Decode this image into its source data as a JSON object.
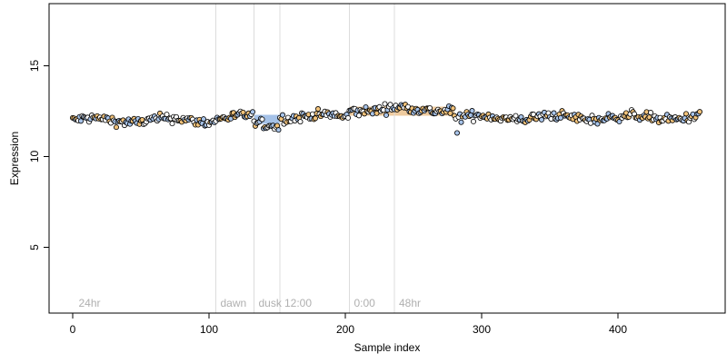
{
  "chart_data": {
    "type": "scatter",
    "title": "",
    "xlabel": "Sample index",
    "ylabel": "Expression",
    "xlim": [
      0,
      460
    ],
    "ylim": [
      1.5,
      18.5
    ],
    "x_ticks": [
      0,
      100,
      200,
      300,
      400
    ],
    "y_ticks": [
      5,
      10,
      15
    ],
    "grid": false,
    "legend": "none",
    "vlines": [
      105,
      133,
      152,
      203,
      236
    ],
    "annotations": [
      {
        "x": 3,
        "label": "24hr"
      },
      {
        "x": 107,
        "label": "dawn"
      },
      {
        "x": 135,
        "label": "dusk"
      },
      {
        "x": 154,
        "label": "12:00"
      },
      {
        "x": 205,
        "label": "0:00"
      },
      {
        "x": 238,
        "label": "48hr"
      }
    ],
    "bands": [
      {
        "x_start": 133,
        "x_end": 152,
        "color": "#5b8fd6",
        "y": 12.05
      },
      {
        "x_start": 203,
        "x_end": 236,
        "color": "#e0a050",
        "y": 12.5
      },
      {
        "x_start": 236,
        "x_end": 280,
        "color": "#e0a050",
        "y": 12.5
      }
    ],
    "series": [
      {
        "color": "#000000",
        "fill_colors": [
          "#ffffff",
          "#a8c4ea",
          "#f1c27a"
        ],
        "n_points": 461,
        "segments": [
          {
            "x_start": 0,
            "x_end": 105,
            "mean": 12.0
          },
          {
            "x_start": 105,
            "x_end": 133,
            "mean": 12.15
          },
          {
            "x_start": 133,
            "x_end": 152,
            "mean": 11.75
          },
          {
            "x_start": 152,
            "x_end": 203,
            "mean": 12.2
          },
          {
            "x_start": 203,
            "x_end": 280,
            "mean": 12.6
          },
          {
            "x_start": 280,
            "x_end": 461,
            "mean": 12.15
          }
        ]
      }
    ]
  }
}
